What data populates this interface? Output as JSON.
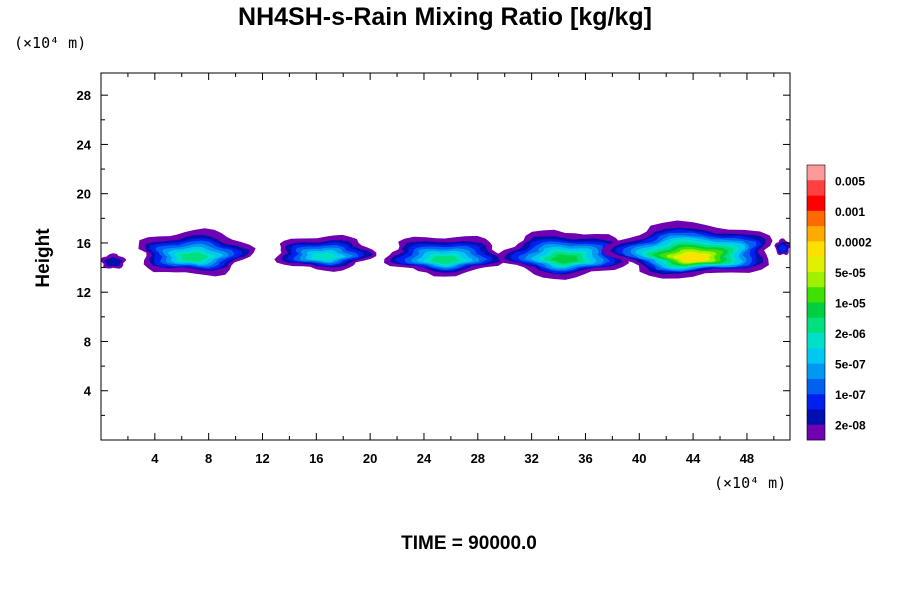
{
  "chart_data": {
    "type": "heatmap",
    "title": "NH4SH-s-Rain Mixing Ratio [kg/kg]",
    "ylabel": "Height",
    "xlabel": "",
    "x_unit": "(×10⁴ m)",
    "y_unit": "(×10⁴ m)",
    "x_ticks": [
      4,
      8,
      12,
      16,
      20,
      24,
      28,
      32,
      36,
      40,
      44,
      48
    ],
    "y_ticks": [
      4,
      8,
      12,
      16,
      20,
      24,
      28
    ],
    "xlim": [
      0,
      51.2
    ],
    "ylim": [
      0,
      29.8
    ],
    "colorbar": {
      "labels": [
        "0.005",
        "0.001",
        "0.0002",
        "5e-05",
        "1e-05",
        "2e-06",
        "5e-07",
        "1e-07",
        "2e-08"
      ],
      "colors_top_to_bottom": [
        "#ff9a9a",
        "#ff4040",
        "#ff0000",
        "#ff6a00",
        "#ffaa00",
        "#ffe000",
        "#e0f000",
        "#a0f000",
        "#40e000",
        "#00d040",
        "#00e080",
        "#00e0c8",
        "#00c8f0",
        "#0098f0",
        "#0060f0",
        "#0020f0",
        "#0010b0",
        "#7000b0"
      ]
    },
    "clouds": [
      {
        "x0": 0,
        "x1": 1.8,
        "y0": 13.9,
        "y1": 15.1,
        "peak": 1
      },
      {
        "x0": 2.8,
        "x1": 11.0,
        "y0": 13.4,
        "y1": 17.0,
        "peak": 7
      },
      {
        "x0": 13.0,
        "x1": 20.2,
        "y0": 13.8,
        "y1": 16.6,
        "peak": 6
      },
      {
        "x0": 21.3,
        "x1": 29.8,
        "y0": 13.4,
        "y1": 16.6,
        "peak": 7
      },
      {
        "x0": 30.0,
        "x1": 39.0,
        "y0": 13.2,
        "y1": 17.0,
        "peak": 8
      },
      {
        "x0": 38.0,
        "x1": 50.0,
        "y0": 13.2,
        "y1": 17.6,
        "peak": 12
      },
      {
        "x0": 50.1,
        "x1": 51.2,
        "y0": 15.0,
        "y1": 16.3,
        "peak": 2
      }
    ],
    "grid": false,
    "legend": "right colorbar"
  },
  "time_label": "TIME = 90000.0"
}
